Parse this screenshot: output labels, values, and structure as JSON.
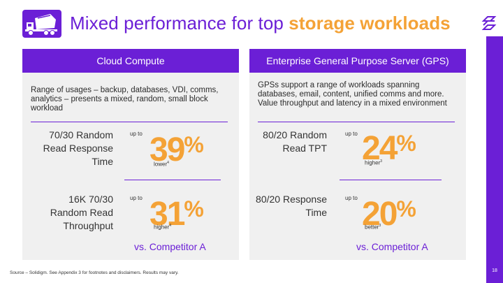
{
  "title": {
    "prefix": "Mixed performance for top",
    "highlight": "storage workloads",
    "icon": "concrete-mixer-truck-icon"
  },
  "colors": {
    "accent": "#6b1fd6",
    "highlight": "#f4a236",
    "panel_bg": "#f0f0f0"
  },
  "panels": [
    {
      "header": "Cloud Compute",
      "description": "Range of usages – backup, databases, VDI, comms, analytics – presents a mixed, random, small block workload",
      "metrics": [
        {
          "label": "70/30 Random Read Response Time",
          "upto": "up to",
          "value": "39",
          "unit": "%",
          "qualifier": "lower",
          "footnote": "4"
        },
        {
          "label": "16K 70/30 Random Read Throughput",
          "upto": "up to",
          "value": "31",
          "unit": "%",
          "qualifier": "higher",
          "footnote": "4"
        }
      ],
      "comparison": "vs. Competitor A"
    },
    {
      "header": "Enterprise General Purpose Server (GPS)",
      "description": "GPSs support a range of workloads spanning databases, email, content, unified comms and more. Value throughput and latency in a mixed environment",
      "metrics": [
        {
          "label": "80/20 Random Read TPT",
          "upto": "up to",
          "value": "24",
          "unit": "%",
          "qualifier": "higher",
          "footnote": "3"
        },
        {
          "label": "80/20 Response Time",
          "upto": "up to",
          "value": "20",
          "unit": "%",
          "qualifier": "better",
          "footnote": "3"
        }
      ],
      "comparison": "vs. Competitor A"
    }
  ],
  "footnote": "Source – Solidigm. See Appendix 3 for footnotes and disclaimers. Results may vary.",
  "page_number": "18"
}
